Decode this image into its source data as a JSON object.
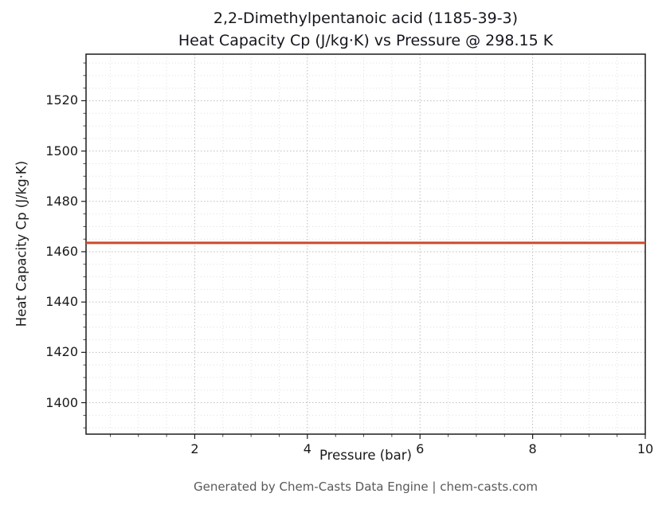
{
  "page": {
    "background": "#ffffff"
  },
  "chart_data": {
    "type": "line",
    "title_line1": "2,2-Dimethylpentanoic acid (1185-39-3)",
    "title_line2": "Heat Capacity Cp (J/kg·K) vs Pressure @ 298.15 K",
    "xlabel": "Pressure (bar)",
    "ylabel": "Heat Capacity Cp (J/kg·K)",
    "xlim": [
      0.07,
      10.0
    ],
    "ylim": [
      1387.5,
      1538.5
    ],
    "xticks": [
      2,
      4,
      6,
      8,
      10
    ],
    "yticks": [
      1400,
      1420,
      1440,
      1460,
      1480,
      1500,
      1520
    ],
    "x_minor_step": 0.5,
    "y_minor_step": 5,
    "grid": true,
    "legend": "none",
    "series": [
      {
        "name": "Heat Capacity Cp",
        "color": "#cc4a2b",
        "line_width": 3,
        "x": [
          0.07,
          10.0
        ],
        "y": [
          1463.5,
          1463.5
        ]
      }
    ],
    "colors": {
      "spine": "#1c1c1c",
      "major_grid": "#bdbdbd",
      "minor_grid": "#dcdcdc",
      "tick": "#1c1c1c"
    }
  },
  "footer": {
    "text": "Generated by Chem-Casts Data Engine | chem-casts.com",
    "color": "#595959"
  }
}
